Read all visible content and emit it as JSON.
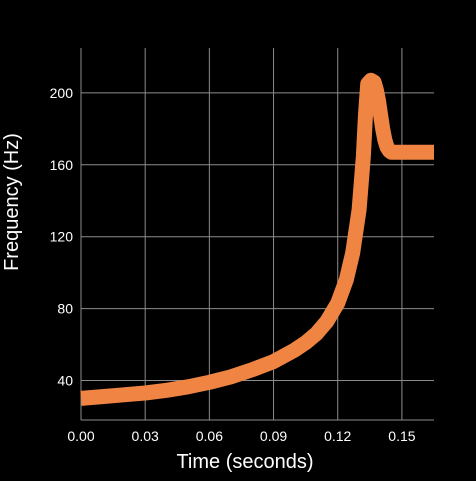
{
  "chart_data": {
    "type": "line",
    "title": "",
    "xlabel": "Time (seconds)",
    "ylabel": "Frequency (Hz)",
    "xlim": [
      0.0,
      0.165
    ],
    "ylim": [
      18,
      225
    ],
    "xticks": [
      0.0,
      0.03,
      0.06,
      0.09,
      0.12,
      0.15
    ],
    "xtick_labels": [
      "0.00",
      "0.03",
      "0.06",
      "0.09",
      "0.12",
      "0.15"
    ],
    "yticks": [
      40,
      80,
      120,
      160,
      200
    ],
    "ytick_labels": [
      "40",
      "80",
      "120",
      "160",
      "200"
    ],
    "grid": true,
    "legend": "none",
    "series": [
      {
        "color": "#F08442",
        "x": [
          0.0,
          0.01,
          0.02,
          0.03,
          0.04,
          0.05,
          0.06,
          0.07,
          0.08,
          0.09,
          0.1,
          0.105,
          0.11,
          0.115,
          0.12,
          0.124,
          0.127,
          0.13,
          0.132,
          0.133,
          0.134,
          0.1355,
          0.137,
          0.138,
          0.139,
          0.14,
          0.141,
          0.142,
          0.143,
          0.144,
          0.145,
          0.147,
          0.15,
          0.155,
          0.16,
          0.165
        ],
        "y": [
          30,
          31,
          32,
          33,
          34.5,
          36.5,
          39,
          42,
          46,
          50.5,
          57,
          61,
          66,
          73,
          83,
          96,
          111,
          135,
          165,
          188,
          205,
          207,
          206,
          202,
          196,
          188,
          180,
          174,
          170,
          168,
          167,
          167,
          167,
          167,
          167,
          167
        ]
      }
    ]
  }
}
